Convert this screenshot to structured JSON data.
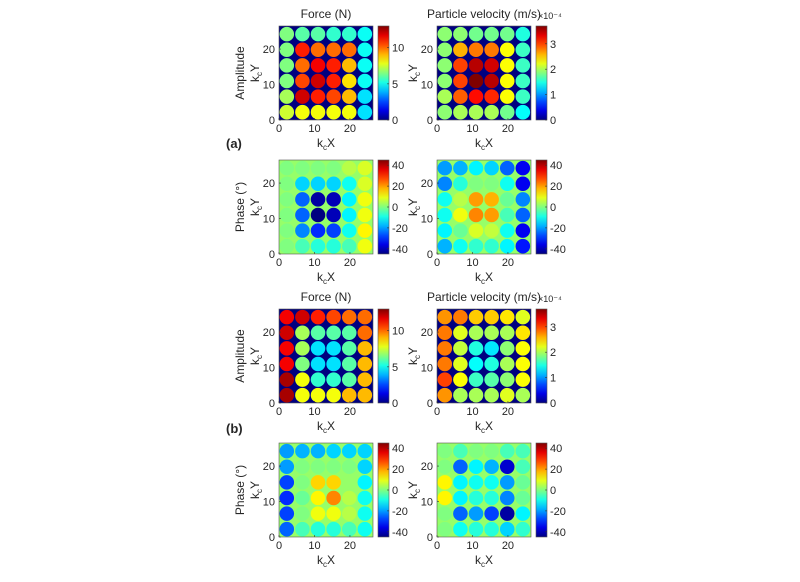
{
  "figure": {
    "panel_labels": [
      "(a)",
      "(b)"
    ],
    "titles": {
      "force": "Force (N)",
      "velocity": "Particle velocity (m/s)"
    },
    "ylabels": {
      "amplitude": "Amplitude",
      "phase": "Phase (°)"
    },
    "axis_x": "k_cX",
    "axis_y": "k_cY",
    "velocity_exponent": "×10⁻⁴"
  },
  "chart_data": [
    {
      "type": "heatmap",
      "group": "(a)",
      "row_label": "Amplitude",
      "title": "Force (N)",
      "xlabel": "k_cX",
      "ylabel": "k_cY",
      "xlim": [
        0,
        26.5
      ],
      "ylim": [
        0,
        26.5
      ],
      "xticks": [
        "0",
        "10",
        "20"
      ],
      "yticks": [
        "0",
        "10",
        "20"
      ],
      "clim": [
        0,
        13
      ],
      "cticks": [
        "0",
        "5",
        "10"
      ],
      "background": 0,
      "x": [
        2.2,
        6.6,
        11,
        15.4,
        19.8,
        24.2
      ],
      "y": [
        24.2,
        19.8,
        15.4,
        11,
        6.6,
        2.2
      ],
      "values": [
        [
          6.5,
          6,
          6,
          5.5,
          5.5,
          5
        ],
        [
          6.5,
          11,
          10,
          10,
          10,
          5
        ],
        [
          6.5,
          10,
          11.5,
          11,
          9,
          5
        ],
        [
          6.5,
          10.5,
          12,
          11,
          8.5,
          5
        ],
        [
          7,
          12,
          11,
          10.5,
          9,
          4.5
        ],
        [
          7.5,
          8,
          8,
          8,
          8,
          4.5
        ]
      ]
    },
    {
      "type": "heatmap",
      "group": "(a)",
      "row_label": "Amplitude",
      "title": "Particle velocity (m/s)",
      "xlabel": "k_cX",
      "ylabel": "k_cY",
      "exponent": "×10⁻⁴",
      "xlim": [
        0,
        26.5
      ],
      "ylim": [
        0,
        26.5
      ],
      "xticks": [
        "0",
        "10",
        "20"
      ],
      "yticks": [
        "0",
        "10",
        "20"
      ],
      "clim": [
        0,
        3.7
      ],
      "cticks": [
        "0",
        "1",
        "2",
        "3"
      ],
      "background": 0,
      "x": [
        2.2,
        6.6,
        11,
        15.4,
        19.8,
        24.2
      ],
      "y": [
        24.2,
        19.8,
        15.4,
        11,
        6.6,
        2.2
      ],
      "values": [
        [
          1.9,
          1.9,
          1.8,
          1.8,
          1.8,
          1.5
        ],
        [
          1.9,
          2.6,
          2.8,
          2.8,
          2.3,
          1.6
        ],
        [
          1.9,
          3.0,
          3.5,
          3.4,
          2.3,
          1.6
        ],
        [
          1.9,
          3.0,
          3.7,
          3.5,
          2.3,
          1.6
        ],
        [
          2.0,
          2.9,
          3.2,
          3.1,
          2.3,
          1.6
        ],
        [
          1.9,
          2.0,
          2.0,
          2.0,
          1.8,
          1.4
        ]
      ]
    },
    {
      "type": "heatmap",
      "group": "(a)",
      "row_label": "Phase (°)",
      "title": "",
      "xlabel": "k_cX",
      "ylabel": "k_cY",
      "xlim": [
        0,
        26.5
      ],
      "ylim": [
        0,
        26.5
      ],
      "xticks": [
        "0",
        "10",
        "20"
      ],
      "yticks": [
        "0",
        "10",
        "20"
      ],
      "clim": [
        -45,
        45
      ],
      "cticks": [
        "-40",
        "-20",
        "0",
        "20",
        "40"
      ],
      "background": 2,
      "x": [
        2.2,
        6.6,
        11,
        15.4,
        19.8,
        24.2
      ],
      "y": [
        24.2,
        19.8,
        15.4,
        11,
        6.6,
        2.2
      ],
      "values": [
        [
          0,
          0,
          0,
          0,
          5,
          8
        ],
        [
          0,
          -15,
          -15,
          -15,
          -10,
          8
        ],
        [
          0,
          -25,
          -42,
          -40,
          -12,
          10
        ],
        [
          0,
          -25,
          -45,
          -40,
          -12,
          10
        ],
        [
          0,
          -22,
          -30,
          -28,
          -10,
          12
        ],
        [
          0,
          -5,
          -8,
          -8,
          -5,
          10
        ]
      ]
    },
    {
      "type": "heatmap",
      "group": "(a)",
      "row_label": "Phase (°)",
      "title": "",
      "xlabel": "k_cX",
      "ylabel": "k_cY",
      "xlim": [
        0,
        26.5
      ],
      "ylim": [
        0,
        26.5
      ],
      "xticks": [
        "0",
        "10",
        "20"
      ],
      "yticks": [
        "0",
        "10",
        "20"
      ],
      "clim": [
        -45,
        45
      ],
      "cticks": [
        "-40",
        "-20",
        "0",
        "20",
        "40"
      ],
      "background": 2,
      "x": [
        2.2,
        6.6,
        11,
        15.4,
        19.8,
        24.2
      ],
      "y": [
        24.2,
        19.8,
        15.4,
        11,
        6.6,
        2.2
      ],
      "values": [
        [
          -20,
          -18,
          -12,
          -15,
          -25,
          -35
        ],
        [
          -22,
          -8,
          0,
          0,
          -10,
          -35
        ],
        [
          -10,
          5,
          20,
          18,
          -2,
          -22
        ],
        [
          -10,
          10,
          22,
          20,
          -5,
          -25
        ],
        [
          -12,
          -2,
          8,
          6,
          -10,
          -35
        ],
        [
          -18,
          -10,
          -7,
          -7,
          -12,
          -32
        ]
      ]
    },
    {
      "type": "heatmap",
      "group": "(b)",
      "row_label": "Amplitude",
      "title": "Force (N)",
      "xlabel": "k_cX",
      "ylabel": "k_cY",
      "xlim": [
        0,
        26.5
      ],
      "ylim": [
        0,
        26.5
      ],
      "xticks": [
        "0",
        "10",
        "20"
      ],
      "yticks": [
        "0",
        "10",
        "20"
      ],
      "clim": [
        0,
        13
      ],
      "cticks": [
        "0",
        "5",
        "10"
      ],
      "background": 0,
      "x": [
        2.2,
        6.6,
        11,
        15.4,
        19.8,
        24.2
      ],
      "y": [
        24.2,
        19.8,
        15.4,
        11,
        6.6,
        2.2
      ],
      "values": [
        [
          11.5,
          12,
          11,
          10.5,
          10,
          10
        ],
        [
          12,
          7,
          6,
          6,
          6,
          10
        ],
        [
          11.5,
          7,
          4.5,
          4.5,
          6,
          9
        ],
        [
          11.5,
          6.5,
          4.5,
          4.5,
          6,
          9
        ],
        [
          12.5,
          8,
          5.5,
          5.5,
          6,
          9
        ],
        [
          12.5,
          8,
          8,
          8,
          9,
          9
        ]
      ]
    },
    {
      "type": "heatmap",
      "group": "(b)",
      "row_label": "Amplitude",
      "title": "Particle velocity (m/s)",
      "xlabel": "k_cX",
      "ylabel": "k_cY",
      "exponent": "×10⁻⁴",
      "xlim": [
        0,
        26.5
      ],
      "ylim": [
        0,
        26.5
      ],
      "xticks": [
        "0",
        "10",
        "20"
      ],
      "yticks": [
        "0",
        "10",
        "20"
      ],
      "clim": [
        0,
        3.7
      ],
      "cticks": [
        "0",
        "1",
        "2",
        "3"
      ],
      "background": 0,
      "x": [
        2.2,
        6.6,
        11,
        15.4,
        19.8,
        24.2
      ],
      "y": [
        24.2,
        19.8,
        15.4,
        11,
        6.6,
        2.2
      ],
      "values": [
        [
          2.7,
          2.8,
          2.5,
          2.5,
          2.4,
          2.2
        ],
        [
          2.8,
          2.2,
          2.0,
          2.0,
          2.0,
          2.4
        ],
        [
          2.8,
          2.1,
          1.5,
          1.3,
          1.9,
          2.3
        ],
        [
          2.8,
          2.2,
          1.4,
          1.5,
          2.0,
          2.3
        ],
        [
          3.0,
          2.3,
          1.6,
          1.7,
          1.9,
          2.3
        ],
        [
          2.7,
          2.0,
          2.0,
          2.0,
          2.2,
          2.0
        ]
      ]
    },
    {
      "type": "heatmap",
      "group": "(b)",
      "row_label": "Phase (°)",
      "title": "",
      "xlabel": "k_cX",
      "ylabel": "k_cY",
      "xlim": [
        0,
        26.5
      ],
      "ylim": [
        0,
        26.5
      ],
      "xticks": [
        "0",
        "10",
        "20"
      ],
      "yticks": [
        "0",
        "10",
        "20"
      ],
      "clim": [
        -45,
        45
      ],
      "cticks": [
        "-40",
        "-20",
        "0",
        "20",
        "40"
      ],
      "background": 2,
      "x": [
        2.2,
        6.6,
        11,
        15.4,
        19.8,
        24.2
      ],
      "y": [
        24.2,
        19.8,
        15.4,
        11,
        6.6,
        2.2
      ],
      "values": [
        [
          -20,
          -18,
          -18,
          -15,
          -15,
          -15
        ],
        [
          -20,
          0,
          0,
          0,
          0,
          -15
        ],
        [
          -28,
          0,
          15,
          15,
          2,
          -12
        ],
        [
          -30,
          -2,
          12,
          22,
          5,
          -10
        ],
        [
          -28,
          0,
          10,
          10,
          5,
          -10
        ],
        [
          -25,
          -5,
          -8,
          -8,
          -5,
          -10
        ]
      ]
    },
    {
      "type": "heatmap",
      "group": "(b)",
      "row_label": "Phase (°)",
      "title": "",
      "xlabel": "k_cX",
      "ylabel": "k_cY",
      "xlim": [
        0,
        26.5
      ],
      "ylim": [
        0,
        26.5
      ],
      "xticks": [
        "0",
        "10",
        "20"
      ],
      "yticks": [
        "0",
        "10",
        "20"
      ],
      "clim": [
        -45,
        45
      ],
      "cticks": [
        "-40",
        "-20",
        "0",
        "20",
        "40"
      ],
      "background": 2,
      "x": [
        2.2,
        6.6,
        11,
        15.4,
        19.8,
        24.2
      ],
      "y": [
        24.2,
        19.8,
        15.4,
        11,
        6.6,
        2.2
      ],
      "values": [
        [
          0,
          -5,
          0,
          0,
          -5,
          -5
        ],
        [
          0,
          -25,
          -12,
          -18,
          -38,
          -5
        ],
        [
          12,
          -12,
          -10,
          -10,
          -20,
          -2
        ],
        [
          12,
          -12,
          -8,
          -8,
          -22,
          -2
        ],
        [
          0,
          -25,
          -20,
          -28,
          -42,
          -12
        ],
        [
          0,
          -10,
          -8,
          -8,
          -15,
          -7
        ]
      ]
    }
  ]
}
